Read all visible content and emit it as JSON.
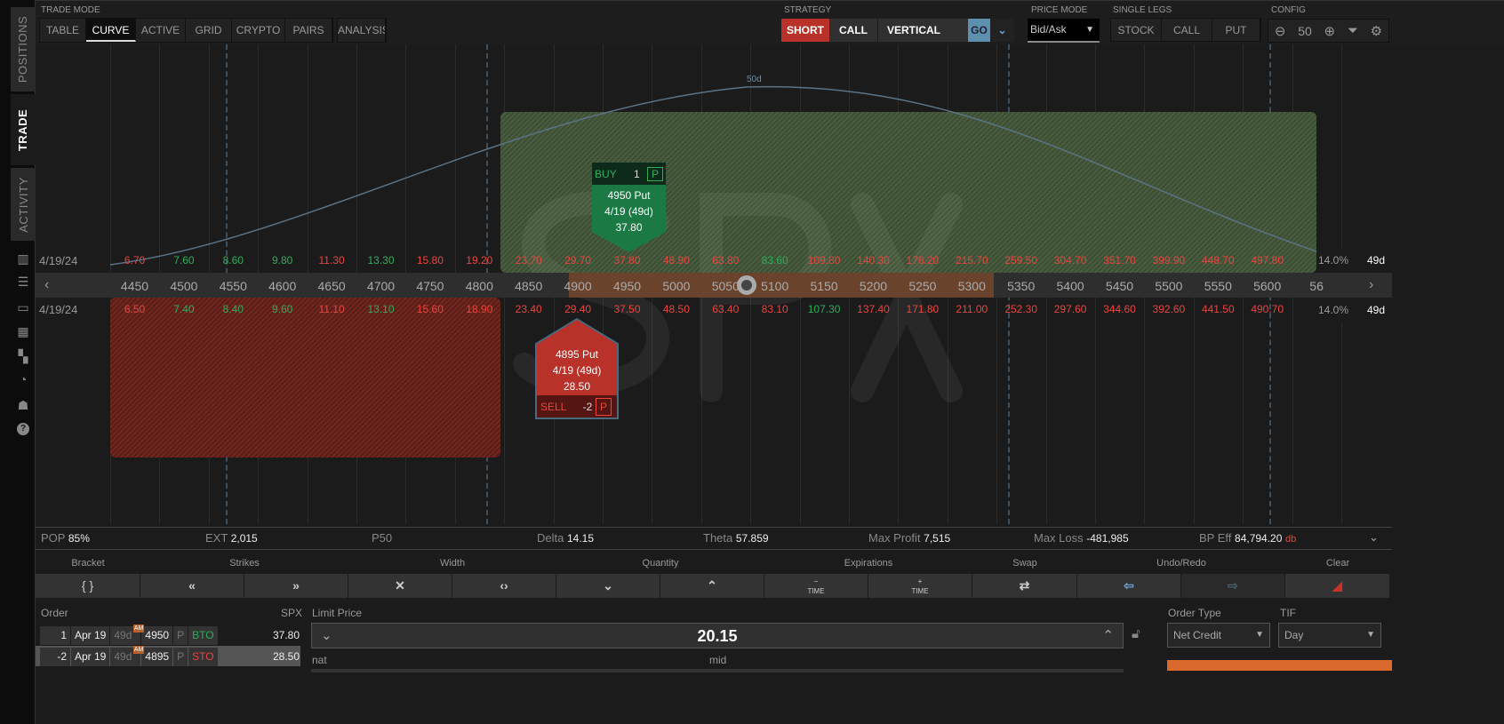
{
  "sidebar": {
    "tabs": [
      "POSITIONS",
      "TRADE",
      "ACTIVITY"
    ],
    "icons": [
      "chart-icon",
      "list-icon",
      "tv-icon",
      "grid-chart-icon",
      "dashboard-icon",
      "speedometer-icon",
      "users-icon",
      "help-icon"
    ]
  },
  "trade_mode": {
    "label": "TRADE MODE",
    "tabs": [
      "TABLE",
      "CURVE",
      "ACTIVE",
      "GRID",
      "CRYPTO",
      "PAIRS"
    ],
    "selected": "CURVE",
    "analysis": "ANALYSIS"
  },
  "strategy": {
    "label": "STRATEGY",
    "side": "SHORT",
    "type": "CALL",
    "spread": "VERTICAL",
    "go": "GO"
  },
  "price_mode": {
    "label": "PRICE MODE",
    "value": "Bid/Ask"
  },
  "single_legs": {
    "label": "SINGLE LEGS",
    "buttons": [
      "STOCK",
      "CALL",
      "PUT"
    ]
  },
  "config": {
    "label": "CONFIG",
    "zoom": "50"
  },
  "curve": {
    "peak_label": "50d",
    "watermark": "SPX",
    "colors": {
      "profit": "#4d6b3a",
      "loss": "#8a2a22",
      "accent": "#d9692c"
    }
  },
  "upper_row": {
    "date": "4/19/24",
    "iv": "14.0%",
    "dte": "49d",
    "values": [
      "6.70",
      "7.60",
      "8.60",
      "9.80",
      "11.30",
      "13.30",
      "15.80",
      "19.20",
      "23.70",
      "29.70",
      "37.80",
      "48.90",
      "63.80",
      "83.60",
      "109.80",
      "140.30",
      "176.20",
      "215.70",
      "259.50",
      "304.70",
      "351.70",
      "399.90",
      "448.70",
      "497.80"
    ],
    "green": [
      1,
      2,
      3,
      5,
      13
    ]
  },
  "strikes": [
    "4450",
    "4500",
    "4550",
    "4600",
    "4650",
    "4700",
    "4750",
    "4800",
    "4850",
    "4900",
    "4950",
    "5000",
    "5050",
    "5100",
    "5150",
    "5200",
    "5250",
    "5300",
    "5350",
    "5400",
    "5450",
    "5500",
    "5550",
    "5600",
    "56"
  ],
  "lower_row": {
    "date": "4/19/24",
    "iv": "14.0%",
    "dte": "49d",
    "values": [
      "6.50",
      "7.40",
      "8.40",
      "9.60",
      "11.10",
      "13.10",
      "15.60",
      "18.90",
      "23.40",
      "29.40",
      "37.50",
      "48.50",
      "63.40",
      "83.10",
      "107.30",
      "137.40",
      "171.80",
      "211.00",
      "252.30",
      "297.60",
      "344.60",
      "392.60",
      "441.50",
      "490.70"
    ],
    "green": [
      1,
      2,
      3,
      5,
      14
    ]
  },
  "buy_flag": {
    "side": "BUY",
    "qty": "1",
    "type": "P",
    "strike": "4950 Put",
    "exp": "4/19 (49d)",
    "price": "37.80"
  },
  "sell_flag": {
    "side": "SELL",
    "qty": "-2",
    "type": "P",
    "strike": "4895 Put",
    "exp": "4/19 (49d)",
    "price": "28.50"
  },
  "stats": {
    "pop_l": "POP",
    "pop": "85%",
    "ext_l": "EXT",
    "ext": "2,015",
    "p50": "P50",
    "delta_l": "Delta",
    "delta": "14.15",
    "theta_l": "Theta",
    "theta": "57.859",
    "maxp_l": "Max Profit",
    "maxp": "7,515",
    "maxl_l": "Max Loss",
    "maxl": "-481,985",
    "bp_l": "BP Eff",
    "bp": "84,794.20",
    "bp_suffix": "db"
  },
  "toolbar": {
    "labels": [
      "Bracket",
      "Strikes",
      "Width",
      "Quantity",
      "Expirations",
      "Swap",
      "Undo/Redo",
      "Clear"
    ],
    "bracket": "{ }",
    "time": "TIME",
    "minus": "−",
    "plus": "+"
  },
  "order": {
    "label": "Order",
    "symbol": "SPX",
    "legs": [
      {
        "qty": "1",
        "exp": "Apr 19",
        "dte": "49d",
        "am": "AM",
        "strike": "4950",
        "type": "P",
        "action": "BTO",
        "price": "37.80"
      },
      {
        "qty": "-2",
        "exp": "Apr 19",
        "dte": "49d",
        "am": "AM",
        "strike": "4895",
        "type": "P",
        "action": "STO",
        "price": "28.50"
      }
    ]
  },
  "limit": {
    "label": "Limit Price",
    "value": "20.15",
    "nat": "nat",
    "mid": "mid"
  },
  "order_type": {
    "label": "Order Type",
    "value": "Net Credit"
  },
  "tif": {
    "label": "TIF",
    "value": "Day"
  }
}
